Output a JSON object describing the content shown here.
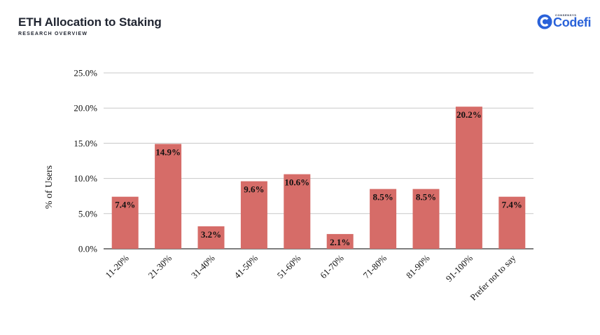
{
  "header": {
    "title": "ETH Allocation to Staking",
    "subtitle": "RESEARCH OVERVIEW"
  },
  "logo": {
    "small_text": "CONSENSYS",
    "word": "Codefi",
    "icon": "codefi-c-logo-icon",
    "color": "#2a62d9"
  },
  "chart_data": {
    "type": "bar",
    "title": "",
    "xlabel": "",
    "ylabel": "% of Users",
    "ylim": [
      0,
      25
    ],
    "grid": true,
    "yticks": [
      "0.0%",
      "5.0%",
      "10.0%",
      "15.0%",
      "20.0%",
      "25.0%"
    ],
    "categories": [
      "11-20%",
      "21-30%",
      "31-40%",
      "41-50%",
      "51-60%",
      "61-70%",
      "71-80%",
      "81-90%",
      "91-100%",
      "Prefer not to say"
    ],
    "values": [
      7.4,
      14.9,
      3.2,
      9.6,
      10.6,
      2.1,
      8.5,
      8.5,
      20.2,
      7.4
    ],
    "data_labels": [
      "7.4%",
      "14.9%",
      "3.2%",
      "9.6%",
      "10.6%",
      "2.1%",
      "8.5%",
      "8.5%",
      "20.2%",
      "7.4%"
    ],
    "bar_color": "#d66c68",
    "grid_color": "#c8c8c8"
  }
}
